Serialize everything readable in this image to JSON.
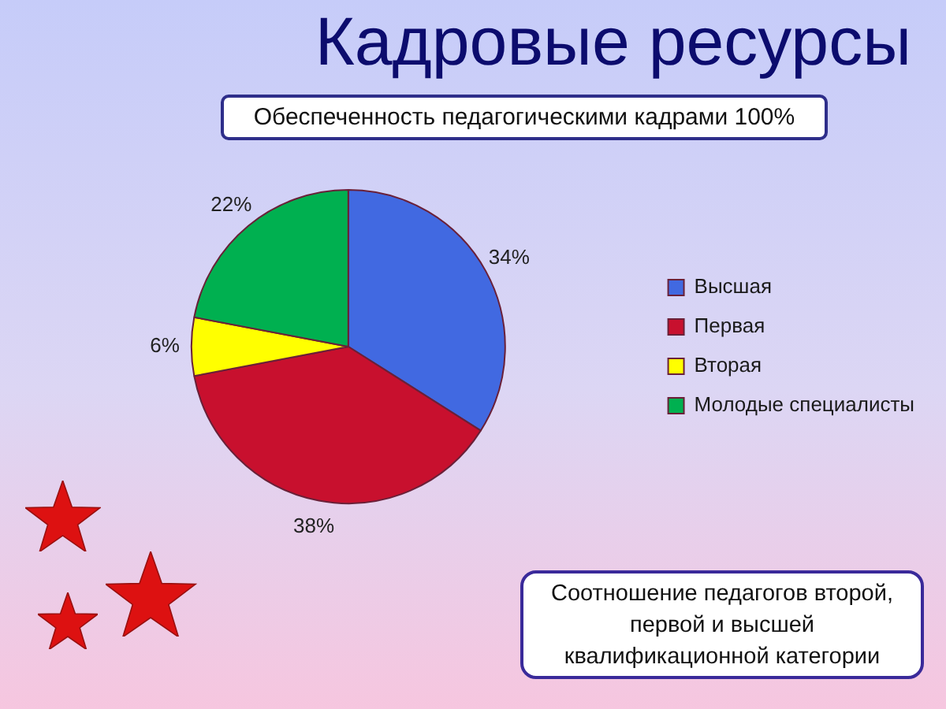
{
  "chart_data": {
    "type": "pie",
    "title": "Кадровые ресурсы",
    "subtitle": "Обеспеченность педагогическими кадрами 100%",
    "categories": [
      "Высшая",
      "Первая",
      "Вторая",
      "Молодые специалисты"
    ],
    "values": [
      34,
      38,
      6,
      22
    ],
    "colors": [
      "#4169e1",
      "#c8102e",
      "#ffff00",
      "#00b050"
    ],
    "value_labels": [
      "34%",
      "38%",
      "6%",
      "22%"
    ],
    "legend": "right",
    "annotations": [
      "Соотношение педагогов второй, первой и высшей квалификационной категории"
    ]
  }
}
